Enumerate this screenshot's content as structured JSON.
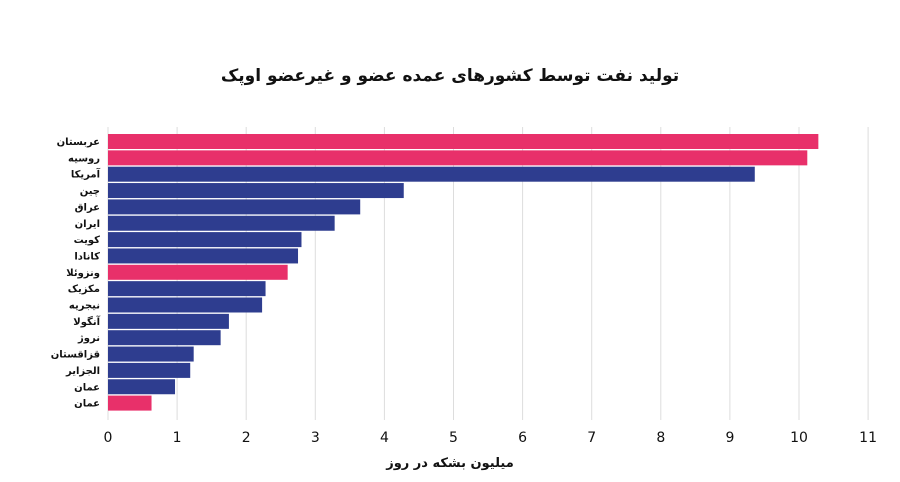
{
  "chart_data": {
    "type": "bar",
    "orientation": "horizontal",
    "title": "تولید نفت توسط کشورهای عمده عضو و غیرعضو اوپک",
    "xlabel": "میلیون بشکه در روز",
    "ylabel": "",
    "xlim": [
      0,
      11
    ],
    "xticks": [
      "0",
      "1",
      "2",
      "3",
      "4",
      "5",
      "6",
      "7",
      "8",
      "9",
      "10",
      "11"
    ],
    "grid": true,
    "colors": {
      "opec": "#e8306a",
      "non_opec": "#2e3d8f",
      "grid": "#dddddd"
    },
    "categories": [
      "عربستان",
      "روسیه",
      "آمریکا",
      "چین",
      "عراق",
      "ایران",
      "کویت",
      "کانادا",
      "ونزوئلا",
      "مکزیک",
      "نیجریه",
      "آنگولا",
      "نروژ",
      "قزاقستان",
      "الجزایر",
      "عمان",
      "عمان"
    ],
    "values": [
      10.28,
      10.12,
      9.36,
      4.28,
      3.65,
      3.28,
      2.8,
      2.75,
      2.6,
      2.28,
      2.23,
      1.75,
      1.63,
      1.24,
      1.19,
      0.97,
      0.63
    ],
    "groups": [
      "opec",
      "opec",
      "non_opec",
      "non_opec",
      "non_opec",
      "non_opec",
      "non_opec",
      "non_opec",
      "opec",
      "non_opec",
      "non_opec",
      "non_opec",
      "non_opec",
      "non_opec",
      "non_opec",
      "non_opec",
      "opec"
    ]
  }
}
